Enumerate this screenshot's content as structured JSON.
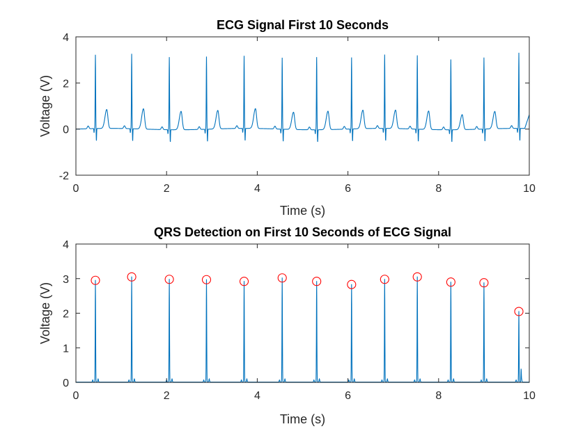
{
  "figure": {
    "background": "#ffffff"
  },
  "chart_data": [
    {
      "type": "line",
      "title": "ECG Signal First 10 Seconds",
      "xlabel": "Time (s)",
      "ylabel": "Voltage (V)",
      "xlim": [
        0,
        10
      ],
      "ylim": [
        -2,
        4
      ],
      "xticks": [
        "0",
        "2",
        "4",
        "6",
        "8",
        "10"
      ],
      "yticks": [
        "-2",
        "0",
        "2",
        "4"
      ],
      "line_color": "#0072bd",
      "r_peaks": [
        {
          "t": 0.43,
          "v": 3.2
        },
        {
          "t": 1.23,
          "v": 3.25
        },
        {
          "t": 2.06,
          "v": 3.15
        },
        {
          "t": 2.88,
          "v": 3.15
        },
        {
          "t": 3.71,
          "v": 3.15
        },
        {
          "t": 4.55,
          "v": 3.1
        },
        {
          "t": 5.31,
          "v": 3.15
        },
        {
          "t": 6.08,
          "v": 3.1
        },
        {
          "t": 6.81,
          "v": 3.2
        },
        {
          "t": 7.53,
          "v": 3.2
        },
        {
          "t": 8.27,
          "v": 3.05
        },
        {
          "t": 9.0,
          "v": 3.1
        },
        {
          "t": 9.77,
          "v": 3.28
        }
      ],
      "t_waves": [
        {
          "t": 0.68,
          "v": 0.82
        },
        {
          "t": 1.49,
          "v": 0.88
        },
        {
          "t": 2.32,
          "v": 0.8
        },
        {
          "t": 3.13,
          "v": 0.8
        },
        {
          "t": 3.96,
          "v": 0.86
        },
        {
          "t": 4.8,
          "v": 0.75
        },
        {
          "t": 5.56,
          "v": 0.8
        },
        {
          "t": 6.33,
          "v": 0.8
        },
        {
          "t": 7.05,
          "v": 0.8
        },
        {
          "t": 7.78,
          "v": 0.8
        },
        {
          "t": 8.52,
          "v": 0.65
        },
        {
          "t": 9.24,
          "v": 0.75
        }
      ],
      "baseline": 0.0
    },
    {
      "type": "line",
      "title": "QRS Detection on First 10 Seconds of ECG Signal",
      "xlabel": "Time (s)",
      "ylabel": "Voltage (V)",
      "xlim": [
        0,
        10
      ],
      "ylim": [
        0,
        4
      ],
      "xticks": [
        "0",
        "2",
        "4",
        "6",
        "8",
        "10"
      ],
      "yticks": [
        "0",
        "1",
        "2",
        "3",
        "4"
      ],
      "line_color": "#0072bd",
      "marker_color": "#ff0000",
      "detected_peaks": [
        {
          "t": 0.43,
          "v": 2.95
        },
        {
          "t": 1.23,
          "v": 3.05
        },
        {
          "t": 2.06,
          "v": 2.98
        },
        {
          "t": 2.88,
          "v": 2.97
        },
        {
          "t": 3.71,
          "v": 2.92
        },
        {
          "t": 4.55,
          "v": 3.02
        },
        {
          "t": 5.31,
          "v": 2.92
        },
        {
          "t": 6.08,
          "v": 2.83
        },
        {
          "t": 6.81,
          "v": 2.98
        },
        {
          "t": 7.53,
          "v": 3.05
        },
        {
          "t": 8.27,
          "v": 2.9
        },
        {
          "t": 9.0,
          "v": 2.88
        },
        {
          "t": 9.77,
          "v": 2.05
        }
      ]
    }
  ]
}
